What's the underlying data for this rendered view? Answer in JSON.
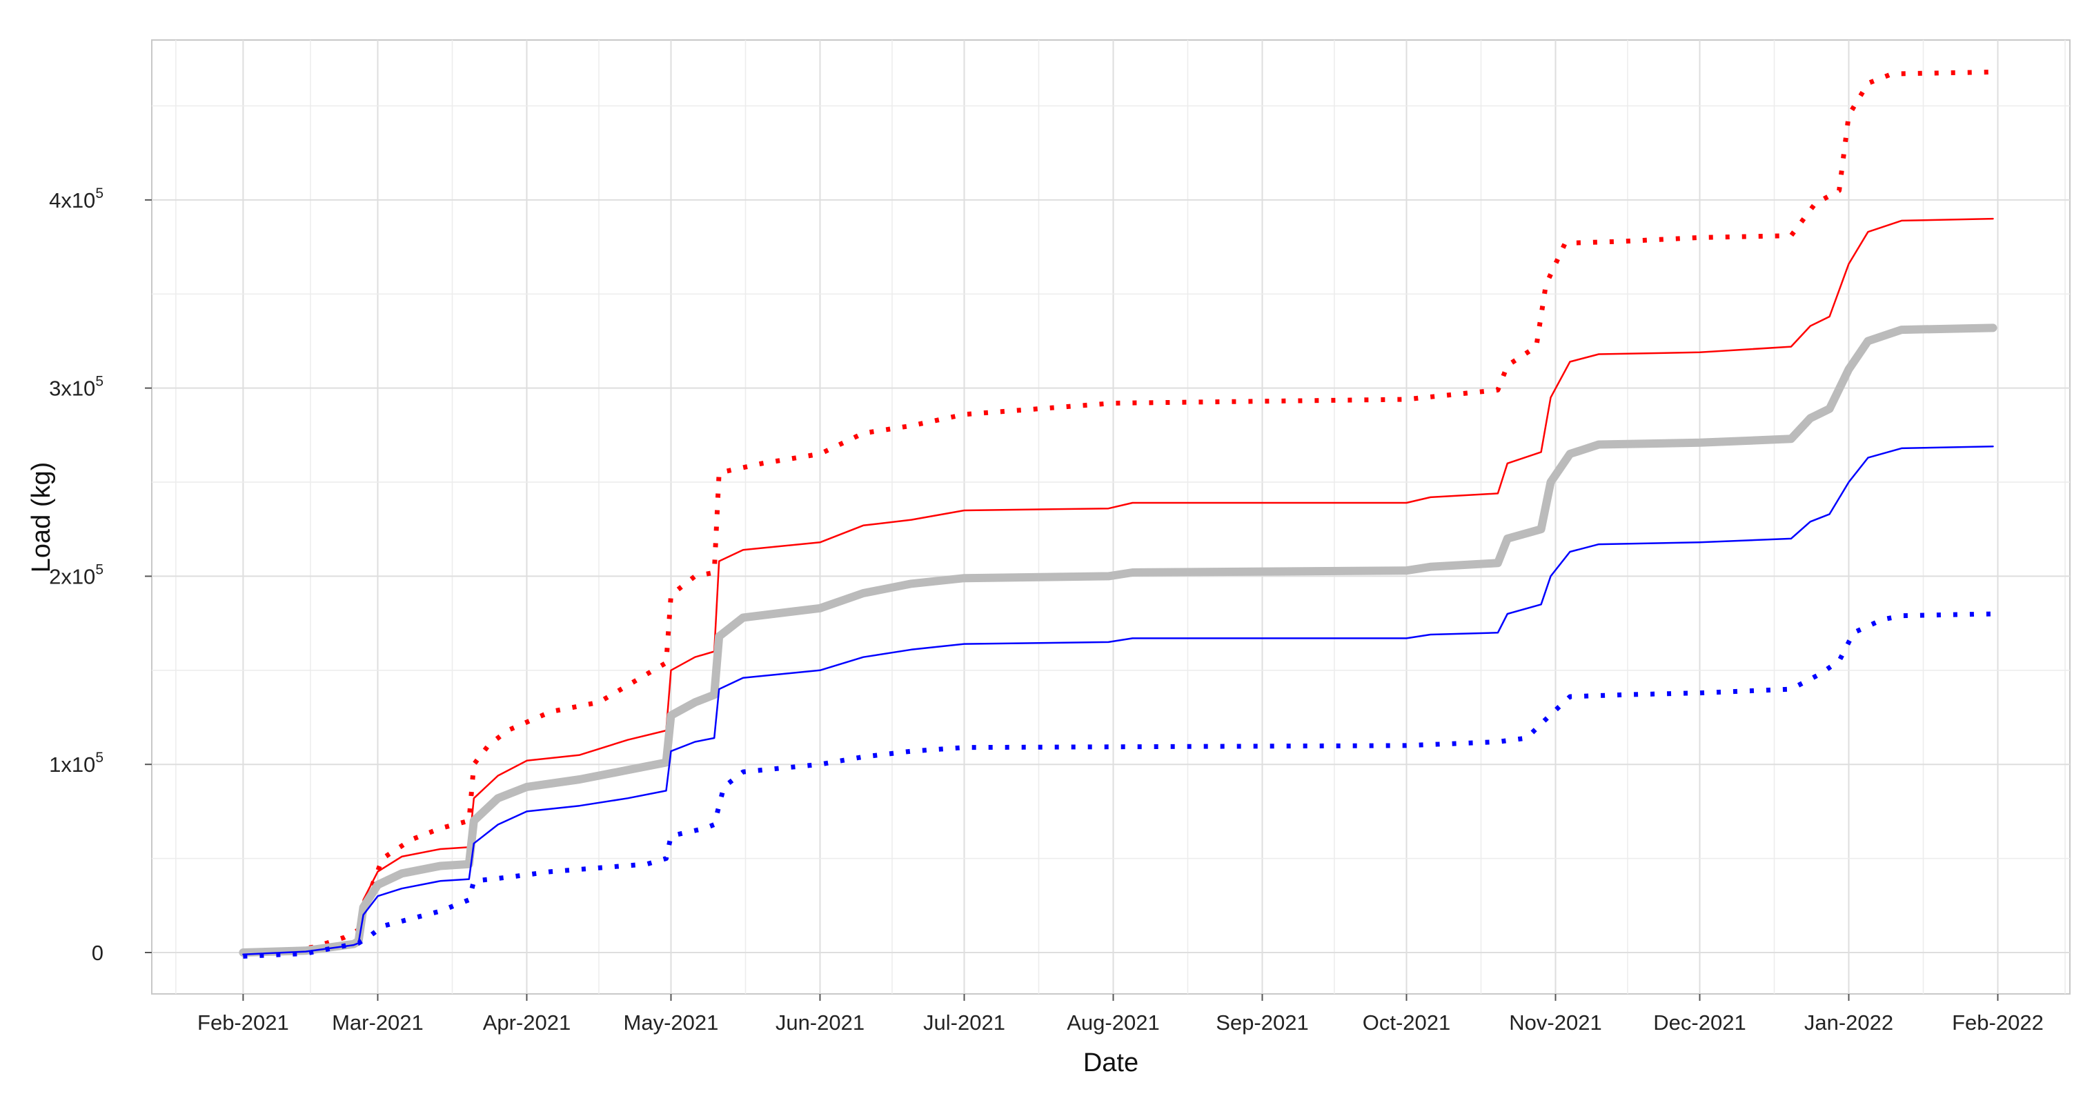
{
  "chart_data": {
    "type": "line",
    "xlabel": "Date",
    "ylabel": "Load (kg)",
    "x_axis_type": "date",
    "xlim": [
      "2021-01-13",
      "2022-02-16"
    ],
    "ylim": [
      -22000,
      485000
    ],
    "x_ticks": [
      {
        "date": "2021-02-01",
        "label": "Feb-2021"
      },
      {
        "date": "2021-03-01",
        "label": "Mar-2021"
      },
      {
        "date": "2021-04-01",
        "label": "Apr-2021"
      },
      {
        "date": "2021-05-01",
        "label": "May-2021"
      },
      {
        "date": "2021-06-01",
        "label": "Jun-2021"
      },
      {
        "date": "2021-07-01",
        "label": "Jul-2021"
      },
      {
        "date": "2021-08-01",
        "label": "Aug-2021"
      },
      {
        "date": "2021-09-01",
        "label": "Sep-2021"
      },
      {
        "date": "2021-10-01",
        "label": "Oct-2021"
      },
      {
        "date": "2021-11-01",
        "label": "Nov-2021"
      },
      {
        "date": "2021-12-01",
        "label": "Dec-2021"
      },
      {
        "date": "2022-01-01",
        "label": "Jan-2022"
      },
      {
        "date": "2022-02-01",
        "label": "Feb-2022"
      }
    ],
    "y_ticks": [
      {
        "value": 0,
        "base": "0",
        "exp": ""
      },
      {
        "value": 100000,
        "base": "1x10",
        "exp": "5"
      },
      {
        "value": 200000,
        "base": "2x10",
        "exp": "5"
      },
      {
        "value": 300000,
        "base": "3x10",
        "exp": "5"
      },
      {
        "value": 400000,
        "base": "4x10",
        "exp": "5"
      }
    ],
    "grid": true,
    "legend": "none",
    "series": [
      {
        "color": "#ff0000",
        "style": "dotted",
        "points": [
          [
            "2021-02-01",
            0
          ],
          [
            "2021-02-10",
            1000
          ],
          [
            "2021-02-16",
            3000
          ],
          [
            "2021-02-22",
            8000
          ],
          [
            "2021-02-25",
            12000
          ],
          [
            "2021-02-27",
            30000
          ],
          [
            "2021-03-02",
            50000
          ],
          [
            "2021-03-08",
            60000
          ],
          [
            "2021-03-14",
            66000
          ],
          [
            "2021-03-20",
            70000
          ],
          [
            "2021-03-21",
            100000
          ],
          [
            "2021-03-24",
            110000
          ],
          [
            "2021-03-28",
            118000
          ],
          [
            "2021-04-06",
            128000
          ],
          [
            "2021-04-16",
            133000
          ],
          [
            "2021-04-26",
            148000
          ],
          [
            "2021-04-30",
            154000
          ],
          [
            "2021-05-01",
            190000
          ],
          [
            "2021-05-06",
            200000
          ],
          [
            "2021-05-10",
            202000
          ],
          [
            "2021-05-11",
            255000
          ],
          [
            "2021-05-20",
            260000
          ],
          [
            "2021-06-01",
            265000
          ],
          [
            "2021-06-10",
            276000
          ],
          [
            "2021-06-20",
            280000
          ],
          [
            "2021-07-01",
            286000
          ],
          [
            "2021-08-01",
            292000
          ],
          [
            "2021-10-01",
            294000
          ],
          [
            "2021-10-20",
            299000
          ],
          [
            "2021-10-22",
            312000
          ],
          [
            "2021-10-28",
            322000
          ],
          [
            "2021-10-30",
            355000
          ],
          [
            "2021-11-03",
            377000
          ],
          [
            "2021-11-15",
            378000
          ],
          [
            "2021-12-01",
            380000
          ],
          [
            "2021-12-20",
            381000
          ],
          [
            "2021-12-25",
            398000
          ],
          [
            "2021-12-30",
            405000
          ],
          [
            "2022-01-01",
            445000
          ],
          [
            "2022-01-05",
            462000
          ],
          [
            "2022-01-10",
            467000
          ],
          [
            "2022-01-31",
            468000
          ]
        ]
      },
      {
        "color": "#ff0000",
        "style": "solid",
        "width": 2.5,
        "points": [
          [
            "2021-02-01",
            0
          ],
          [
            "2021-02-14",
            1500
          ],
          [
            "2021-02-24",
            5000
          ],
          [
            "2021-02-25",
            7000
          ],
          [
            "2021-02-26",
            28000
          ],
          [
            "2021-03-01",
            43000
          ],
          [
            "2021-03-06",
            51000
          ],
          [
            "2021-03-14",
            55000
          ],
          [
            "2021-03-20",
            56000
          ],
          [
            "2021-03-21",
            82000
          ],
          [
            "2021-03-26",
            94000
          ],
          [
            "2021-04-01",
            102000
          ],
          [
            "2021-04-12",
            105000
          ],
          [
            "2021-04-22",
            113000
          ],
          [
            "2021-04-30",
            118000
          ],
          [
            "2021-05-01",
            150000
          ],
          [
            "2021-05-06",
            157000
          ],
          [
            "2021-05-10",
            160000
          ],
          [
            "2021-05-11",
            208000
          ],
          [
            "2021-05-16",
            214000
          ],
          [
            "2021-06-01",
            218000
          ],
          [
            "2021-06-10",
            227000
          ],
          [
            "2021-06-20",
            230000
          ],
          [
            "2021-07-01",
            235000
          ],
          [
            "2021-07-31",
            236000
          ],
          [
            "2021-08-05",
            239000
          ],
          [
            "2021-10-01",
            239000
          ],
          [
            "2021-10-06",
            242000
          ],
          [
            "2021-10-20",
            244000
          ],
          [
            "2021-10-22",
            260000
          ],
          [
            "2021-10-29",
            266000
          ],
          [
            "2021-10-31",
            295000
          ],
          [
            "2021-11-04",
            314000
          ],
          [
            "2021-11-10",
            318000
          ],
          [
            "2021-12-01",
            319000
          ],
          [
            "2021-12-20",
            322000
          ],
          [
            "2021-12-24",
            333000
          ],
          [
            "2021-12-28",
            338000
          ],
          [
            "2022-01-01",
            366000
          ],
          [
            "2022-01-05",
            383000
          ],
          [
            "2022-01-12",
            389000
          ],
          [
            "2022-01-31",
            390000
          ]
        ]
      },
      {
        "color": "#bbbbbb",
        "style": "solid",
        "width": 12,
        "points": [
          [
            "2021-02-01",
            0
          ],
          [
            "2021-02-14",
            1000
          ],
          [
            "2021-02-24",
            4500
          ],
          [
            "2021-02-25",
            6000
          ],
          [
            "2021-02-26",
            24000
          ],
          [
            "2021-03-01",
            36000
          ],
          [
            "2021-03-06",
            42000
          ],
          [
            "2021-03-14",
            46000
          ],
          [
            "2021-03-20",
            47000
          ],
          [
            "2021-03-21",
            70000
          ],
          [
            "2021-03-26",
            82000
          ],
          [
            "2021-04-01",
            88000
          ],
          [
            "2021-04-12",
            92000
          ],
          [
            "2021-04-22",
            97000
          ],
          [
            "2021-04-30",
            101000
          ],
          [
            "2021-05-01",
            126000
          ],
          [
            "2021-05-06",
            133000
          ],
          [
            "2021-05-10",
            137000
          ],
          [
            "2021-05-11",
            168000
          ],
          [
            "2021-05-16",
            178000
          ],
          [
            "2021-06-01",
            183000
          ],
          [
            "2021-06-10",
            191000
          ],
          [
            "2021-06-20",
            196000
          ],
          [
            "2021-07-01",
            199000
          ],
          [
            "2021-07-31",
            200000
          ],
          [
            "2021-08-05",
            202000
          ],
          [
            "2021-10-01",
            203000
          ],
          [
            "2021-10-06",
            205000
          ],
          [
            "2021-10-20",
            207000
          ],
          [
            "2021-10-22",
            220000
          ],
          [
            "2021-10-29",
            225000
          ],
          [
            "2021-10-31",
            250000
          ],
          [
            "2021-11-04",
            265000
          ],
          [
            "2021-11-10",
            270000
          ],
          [
            "2021-12-01",
            271000
          ],
          [
            "2021-12-20",
            273000
          ],
          [
            "2021-12-24",
            284000
          ],
          [
            "2021-12-28",
            289000
          ],
          [
            "2022-01-01",
            310000
          ],
          [
            "2022-01-05",
            325000
          ],
          [
            "2022-01-12",
            331000
          ],
          [
            "2022-01-31",
            332000
          ]
        ]
      },
      {
        "color": "#0000ff",
        "style": "solid",
        "width": 2.5,
        "points": [
          [
            "2021-02-01",
            -1000
          ],
          [
            "2021-02-14",
            500
          ],
          [
            "2021-02-24",
            4000
          ],
          [
            "2021-02-25",
            5000
          ],
          [
            "2021-02-26",
            20000
          ],
          [
            "2021-03-01",
            30000
          ],
          [
            "2021-03-06",
            34000
          ],
          [
            "2021-03-14",
            38000
          ],
          [
            "2021-03-20",
            39000
          ],
          [
            "2021-03-21",
            58000
          ],
          [
            "2021-03-26",
            68000
          ],
          [
            "2021-04-01",
            75000
          ],
          [
            "2021-04-12",
            78000
          ],
          [
            "2021-04-22",
            82000
          ],
          [
            "2021-04-30",
            86000
          ],
          [
            "2021-05-01",
            107000
          ],
          [
            "2021-05-06",
            112000
          ],
          [
            "2021-05-10",
            114000
          ],
          [
            "2021-05-11",
            140000
          ],
          [
            "2021-05-16",
            146000
          ],
          [
            "2021-06-01",
            150000
          ],
          [
            "2021-06-10",
            157000
          ],
          [
            "2021-06-20",
            161000
          ],
          [
            "2021-07-01",
            164000
          ],
          [
            "2021-07-31",
            165000
          ],
          [
            "2021-08-05",
            167000
          ],
          [
            "2021-10-01",
            167000
          ],
          [
            "2021-10-06",
            169000
          ],
          [
            "2021-10-20",
            170000
          ],
          [
            "2021-10-22",
            180000
          ],
          [
            "2021-10-29",
            185000
          ],
          [
            "2021-10-31",
            200000
          ],
          [
            "2021-11-04",
            213000
          ],
          [
            "2021-11-10",
            217000
          ],
          [
            "2021-12-01",
            218000
          ],
          [
            "2021-12-20",
            220000
          ],
          [
            "2021-12-24",
            229000
          ],
          [
            "2021-12-28",
            233000
          ],
          [
            "2022-01-01",
            250000
          ],
          [
            "2022-01-05",
            263000
          ],
          [
            "2022-01-12",
            268000
          ],
          [
            "2022-01-31",
            269000
          ]
        ]
      },
      {
        "color": "#0000ff",
        "style": "dotted",
        "points": [
          [
            "2021-02-01",
            -2000
          ],
          [
            "2021-02-14",
            -500
          ],
          [
            "2021-02-25",
            5000
          ],
          [
            "2021-02-27",
            8000
          ],
          [
            "2021-03-02",
            14000
          ],
          [
            "2021-03-08",
            18000
          ],
          [
            "2021-03-14",
            22000
          ],
          [
            "2021-03-20",
            28000
          ],
          [
            "2021-03-21",
            38000
          ],
          [
            "2021-03-28",
            40000
          ],
          [
            "2021-04-06",
            43000
          ],
          [
            "2021-04-16",
            45000
          ],
          [
            "2021-04-26",
            47000
          ],
          [
            "2021-04-30",
            50000
          ],
          [
            "2021-05-01",
            62000
          ],
          [
            "2021-05-08",
            66000
          ],
          [
            "2021-05-10",
            68000
          ],
          [
            "2021-05-12",
            88000
          ],
          [
            "2021-05-16",
            96000
          ],
          [
            "2021-06-01",
            100000
          ],
          [
            "2021-06-10",
            104000
          ],
          [
            "2021-06-20",
            107000
          ],
          [
            "2021-07-01",
            109000
          ],
          [
            "2021-10-01",
            110000
          ],
          [
            "2021-10-20",
            112000
          ],
          [
            "2021-10-26",
            114000
          ],
          [
            "2021-10-30",
            124000
          ],
          [
            "2021-11-04",
            136000
          ],
          [
            "2021-11-15",
            137000
          ],
          [
            "2021-12-01",
            138000
          ],
          [
            "2021-12-20",
            140000
          ],
          [
            "2021-12-26",
            148000
          ],
          [
            "2021-12-30",
            155000
          ],
          [
            "2022-01-02",
            170000
          ],
          [
            "2022-01-08",
            177000
          ],
          [
            "2022-01-12",
            179000
          ],
          [
            "2022-01-31",
            180000
          ]
        ]
      }
    ]
  }
}
